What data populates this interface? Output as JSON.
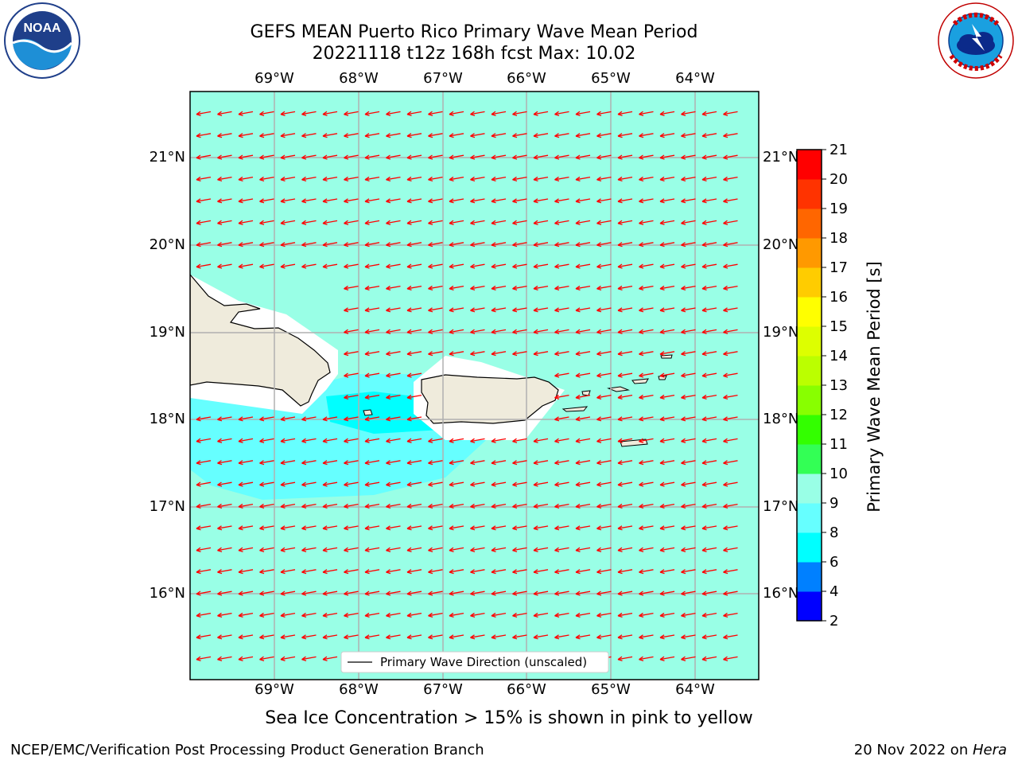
{
  "header": {
    "title_line1": "GEFS MEAN Puerto Rico Primary Wave Mean Period",
    "title_line2": "20221118 t12z 168h fcst   Max: 10.02"
  },
  "logos": {
    "noaa_text": "NOAA",
    "noaa_ring": "NATIONAL OCEANIC AND ATMOSPHERIC ADMINISTRATION · U.S. DEPARTMENT OF COMMERCE",
    "nws_ring": "NATIONAL WEATHER SERVICE"
  },
  "map": {
    "lon_labels": [
      "69°W",
      "68°W",
      "67°W",
      "66°W",
      "65°W",
      "64°W"
    ],
    "lat_labels": [
      "21°N",
      "20°N",
      "19°N",
      "18°N",
      "17°N",
      "16°N"
    ],
    "lon_range": [
      -70.0,
      -63.25
    ],
    "lat_range": [
      15.0,
      21.75
    ],
    "legend_label": "Primary Wave Direction (unscaled)",
    "arrow_color": "#ff0000",
    "background_color": "#99ffe6",
    "land_color": "#efebdc"
  },
  "colorbar": {
    "label": "Primary Wave Mean Period [s]",
    "ticks": [
      "2",
      "4",
      "6",
      "8",
      "9",
      "10",
      "11",
      "12",
      "13",
      "14",
      "15",
      "16",
      "17",
      "18",
      "19",
      "20",
      "21"
    ],
    "colors": [
      "#0000ff",
      "#0080ff",
      "#00ffff",
      "#66ffff",
      "#99ffe6",
      "#33ff55",
      "#33ff00",
      "#88ff00",
      "#bbff00",
      "#ddff00",
      "#ffff00",
      "#ffcc00",
      "#ff9900",
      "#ff6600",
      "#ff3300",
      "#ff0000"
    ]
  },
  "footer": {
    "sea_ice_note": "Sea Ice Concentration > 15% is shown in pink to yellow",
    "branch": "NCEP/EMC/Verification Post Processing Product Generation Branch",
    "date": "20 Nov 2022 on ",
    "host": "Hera"
  }
}
